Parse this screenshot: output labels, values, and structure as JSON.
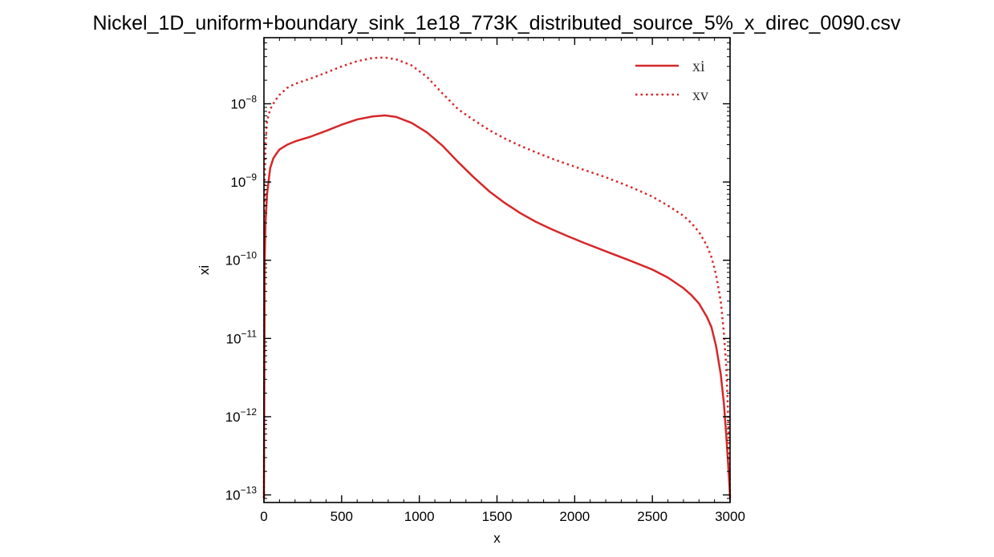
{
  "chart_data": {
    "type": "line",
    "title": "Nickel_1D_uniform+boundary_sink_1e18_773K_distributed_source_5%_x_direc_0090.csv",
    "xlabel": "x",
    "ylabel": "xi",
    "xlim": [
      0,
      3000
    ],
    "ylim": [
      8e-14,
      7e-08
    ],
    "yscale": "log",
    "xticks": [
      0,
      500,
      1000,
      1500,
      2000,
      2500,
      3000
    ],
    "xtick_labels": [
      "0",
      "500",
      "1000",
      "1500",
      "2000",
      "2500",
      "3000"
    ],
    "yticks": [
      {
        "value": 1e-13,
        "base": "10",
        "exponent": "−13"
      },
      {
        "value": 1e-12,
        "base": "10",
        "exponent": "−12"
      },
      {
        "value": 1e-11,
        "base": "10",
        "exponent": "−11"
      },
      {
        "value": 1e-10,
        "base": "10",
        "exponent": "−10"
      },
      {
        "value": 1e-09,
        "base": "10",
        "exponent": "−9"
      },
      {
        "value": 1e-08,
        "base": "10",
        "exponent": "−8"
      }
    ],
    "grid": false,
    "legend": "top-right",
    "series": [
      {
        "name": "xi",
        "color": "#d62728",
        "linestyle": "solid",
        "x": [
          0,
          5,
          10,
          20,
          40,
          60,
          80,
          100,
          150,
          200,
          300,
          400,
          500,
          600,
          700,
          780,
          850,
          950,
          1050,
          1150,
          1250,
          1350,
          1450,
          1550,
          1650,
          1750,
          1850,
          1950,
          2050,
          2200,
          2350,
          2500,
          2600,
          2700,
          2750,
          2800,
          2850,
          2880,
          2910,
          2940,
          2960,
          2975,
          2985,
          2992,
          2997,
          3000
        ],
        "y": [
          9e-14,
          1e-10,
          3e-10,
          7e-10,
          1.5e-09,
          2e-09,
          2.3e-09,
          2.6e-09,
          3e-09,
          3.3e-09,
          3.8e-09,
          4.5e-09,
          5.4e-09,
          6.3e-09,
          6.9e-09,
          7.1e-09,
          6.8e-09,
          5.7e-09,
          4.3e-09,
          2.9e-09,
          1.8e-09,
          1.15e-09,
          7.6e-10,
          5.4e-10,
          4e-10,
          3.1e-10,
          2.5e-10,
          2.05e-10,
          1.7e-10,
          1.3e-10,
          1e-10,
          7.6e-11,
          6e-11,
          4.4e-11,
          3.6e-11,
          2.8e-11,
          1.9e-11,
          1.4e-11,
          8e-12,
          3.5e-12,
          1.5e-12,
          6e-13,
          3e-13,
          1.8e-13,
          1.2e-13,
          9e-14
        ]
      },
      {
        "name": "xv",
        "color": "#d62728",
        "linestyle": "dotted",
        "x": [
          0,
          5,
          10,
          20,
          40,
          60,
          80,
          100,
          150,
          200,
          300,
          400,
          500,
          600,
          700,
          780,
          850,
          950,
          1050,
          1150,
          1250,
          1350,
          1450,
          1550,
          1650,
          1750,
          1850,
          1950,
          2050,
          2200,
          2350,
          2500,
          2600,
          2700,
          2750,
          2800,
          2850,
          2880,
          2910,
          2940,
          2960,
          2975,
          2985,
          2992,
          2997,
          3000
        ],
        "y": [
          9e-14,
          1e-09,
          3e-09,
          6e-09,
          8.5e-09,
          1e-08,
          1.15e-08,
          1.3e-08,
          1.6e-08,
          1.8e-08,
          2.1e-08,
          2.5e-08,
          3e-08,
          3.5e-08,
          3.85e-08,
          3.9e-08,
          3.7e-08,
          3.1e-08,
          2.2e-08,
          1.35e-08,
          8.5e-09,
          6.2e-09,
          4.6e-09,
          3.6e-09,
          2.9e-09,
          2.4e-09,
          2e-09,
          1.7e-09,
          1.45e-09,
          1.15e-09,
          8.8e-10,
          6.5e-10,
          5e-10,
          3.7e-10,
          3e-10,
          2.3e-10,
          1.55e-10,
          1.1e-10,
          6.5e-11,
          3e-11,
          1.2e-11,
          4.5e-12,
          1.5e-12,
          5e-13,
          2e-13,
          9e-14
        ]
      }
    ]
  }
}
